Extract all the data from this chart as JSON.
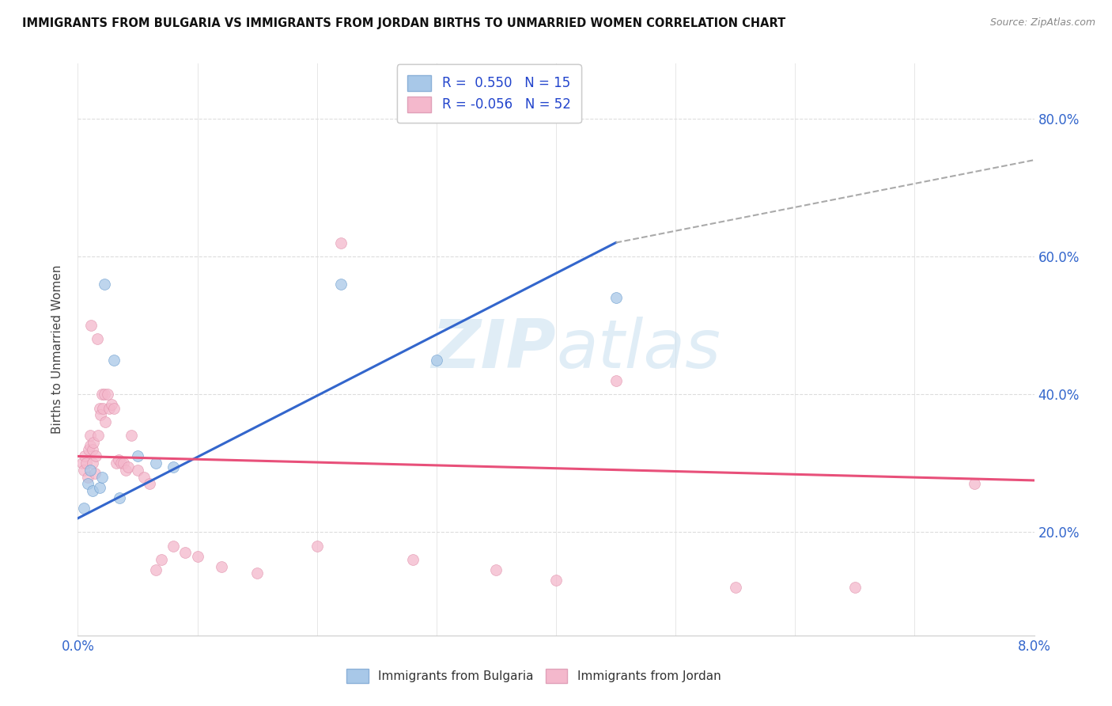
{
  "title": "IMMIGRANTS FROM BULGARIA VS IMMIGRANTS FROM JORDAN BIRTHS TO UNMARRIED WOMEN CORRELATION CHART",
  "source": "Source: ZipAtlas.com",
  "ylabel": "Births to Unmarried Women",
  "legend_label1": "Immigrants from Bulgaria",
  "legend_label2": "Immigrants from Jordan",
  "xlim": [
    0.0,
    8.0
  ],
  "ylim": [
    5.0,
    88.0
  ],
  "yticks": [
    20.0,
    40.0,
    60.0,
    80.0
  ],
  "color_bulgaria": "#a8c8e8",
  "color_jordan": "#f4b8cc",
  "trendline_bulgaria": "#3366cc",
  "trendline_jordan": "#e8507a",
  "bg_color": "#ffffff",
  "grid_color": "#dddddd",
  "bulgaria_x": [
    0.05,
    0.08,
    0.1,
    0.12,
    0.18,
    0.2,
    0.22,
    0.3,
    0.35,
    0.5,
    0.65,
    0.8,
    2.2,
    3.0,
    4.5
  ],
  "bulgaria_y": [
    23.5,
    27.0,
    29.0,
    26.0,
    26.5,
    28.0,
    56.0,
    45.0,
    25.0,
    31.0,
    30.0,
    29.5,
    56.0,
    45.0,
    54.0
  ],
  "jordan_x": [
    0.04,
    0.05,
    0.06,
    0.07,
    0.08,
    0.09,
    0.1,
    0.1,
    0.11,
    0.12,
    0.12,
    0.13,
    0.14,
    0.15,
    0.16,
    0.17,
    0.18,
    0.19,
    0.2,
    0.21,
    0.22,
    0.23,
    0.25,
    0.26,
    0.28,
    0.3,
    0.32,
    0.34,
    0.36,
    0.38,
    0.4,
    0.42,
    0.45,
    0.5,
    0.55,
    0.6,
    0.65,
    0.7,
    0.8,
    0.9,
    1.0,
    1.2,
    1.5,
    2.0,
    2.2,
    2.8,
    3.5,
    4.0,
    4.5,
    5.5,
    6.5,
    7.5
  ],
  "jordan_y": [
    30.0,
    29.0,
    31.0,
    30.0,
    28.0,
    32.0,
    32.5,
    34.0,
    50.0,
    30.0,
    32.0,
    33.0,
    28.5,
    31.0,
    48.0,
    34.0,
    38.0,
    37.0,
    40.0,
    38.0,
    40.0,
    36.0,
    40.0,
    38.0,
    38.5,
    38.0,
    30.0,
    30.5,
    30.0,
    30.0,
    29.0,
    29.5,
    34.0,
    29.0,
    28.0,
    27.0,
    14.5,
    16.0,
    18.0,
    17.0,
    16.5,
    15.0,
    14.0,
    18.0,
    62.0,
    16.0,
    14.5,
    13.0,
    42.0,
    12.0,
    12.0,
    27.0
  ],
  "bulgaria_trend_x0": 0.0,
  "bulgaria_trend_y0": 22.0,
  "bulgaria_trend_x1": 4.5,
  "bulgaria_trend_y1": 62.0,
  "bulgaria_dash_x0": 4.5,
  "bulgaria_dash_y0": 62.0,
  "bulgaria_dash_x1": 8.0,
  "bulgaria_dash_y1": 74.0,
  "jordan_trend_x0": 0.0,
  "jordan_trend_y0": 31.0,
  "jordan_trend_x1": 8.0,
  "jordan_trend_y1": 27.5
}
